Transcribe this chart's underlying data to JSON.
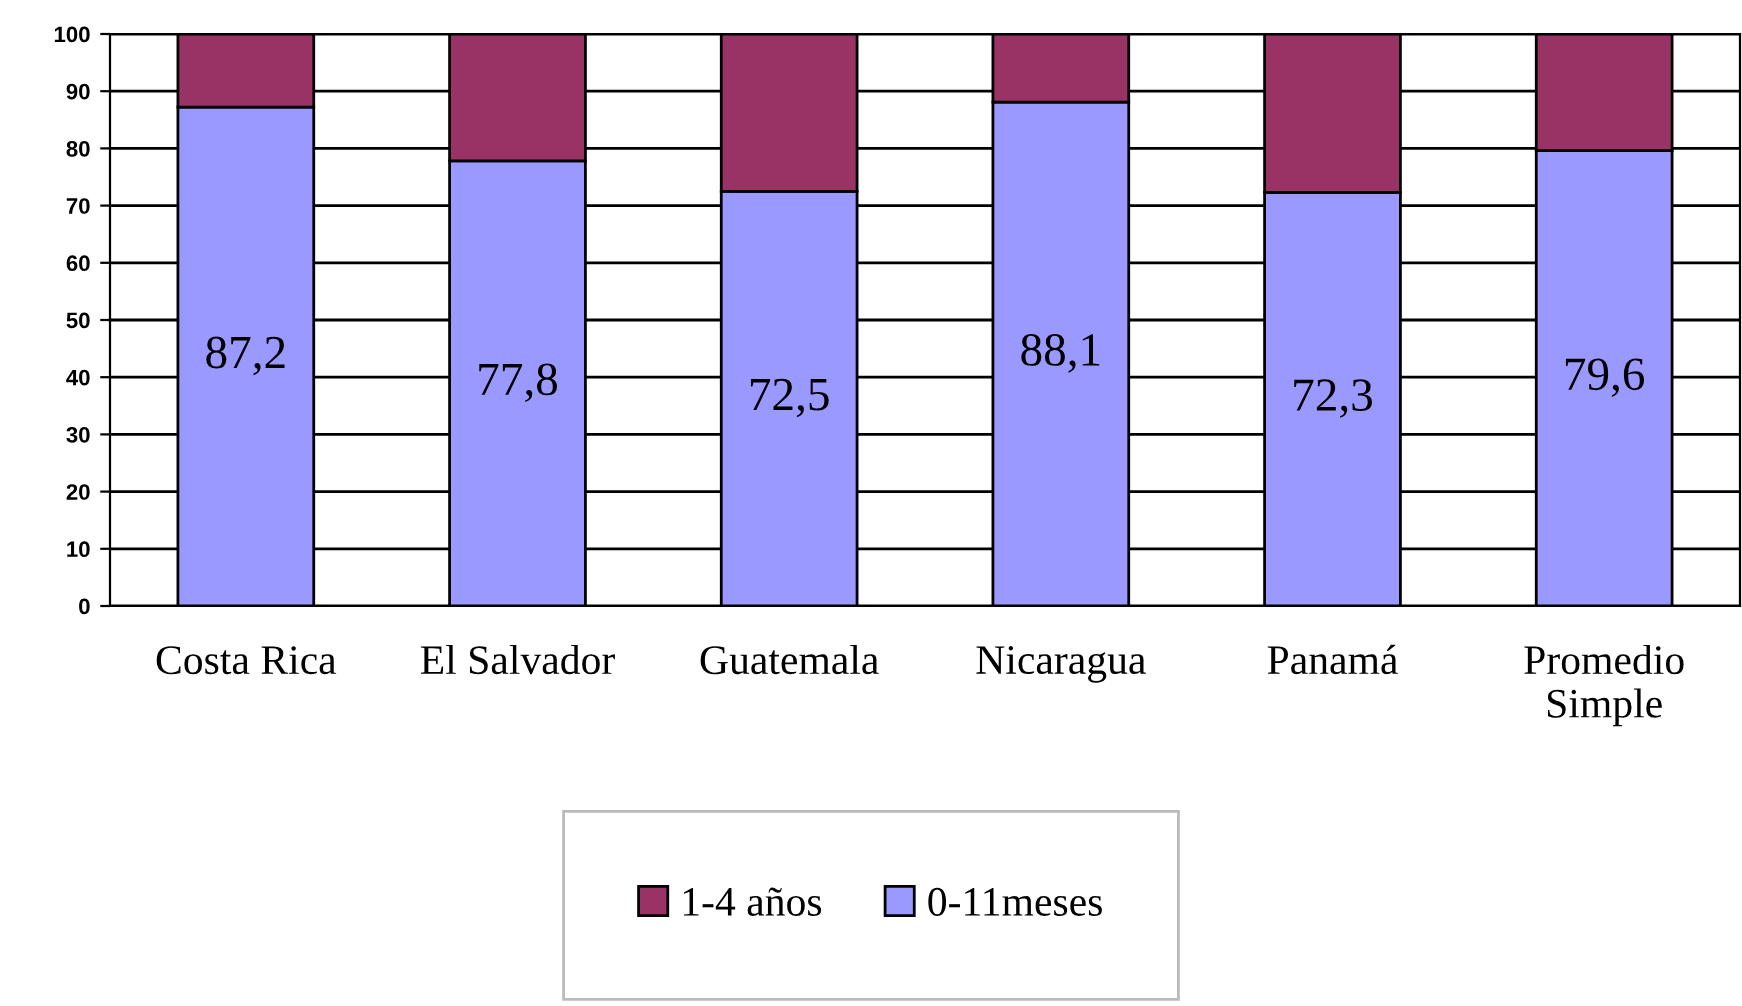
{
  "chart_data": {
    "type": "bar",
    "stacked": true,
    "categories": [
      "Costa Rica",
      "El Salvador",
      "Guatemala",
      "Nicaragua",
      "Panamá",
      "Promedio Simple"
    ],
    "series": [
      {
        "name": "0-11meses",
        "color": "#9999ff",
        "values": [
          87.2,
          77.8,
          72.5,
          88.1,
          72.3,
          79.6
        ],
        "value_labels": [
          "87,2",
          "77,8",
          "72,5",
          "88,1",
          "72,3",
          "79,6"
        ]
      },
      {
        "name": "1-4 años",
        "color": "#993366",
        "values": [
          12.8,
          22.2,
          27.5,
          11.9,
          27.7,
          20.4
        ]
      }
    ],
    "ylim": [
      0,
      100
    ],
    "yticks": [
      0,
      10,
      20,
      30,
      40,
      50,
      60,
      70,
      80,
      90,
      100
    ],
    "grid": "y",
    "legend": "bottom"
  }
}
